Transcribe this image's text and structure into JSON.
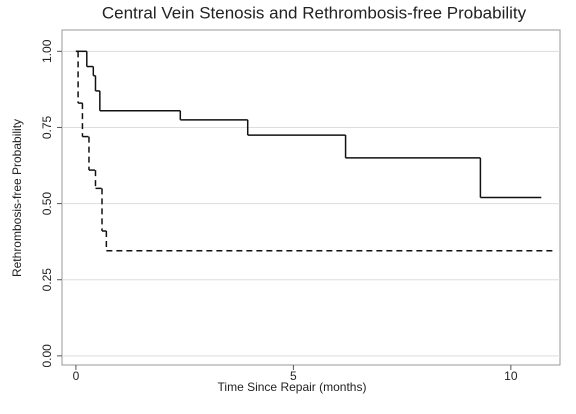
{
  "chart_data": {
    "type": "step",
    "title": "Central Vein Stenosis and Rethrombosis-free Probability",
    "xlabel": "Time Since Repair (months)",
    "ylabel": "Rethrombosis-free Probability",
    "xlim": [
      -0.32,
      11.13
    ],
    "ylim": [
      -0.03,
      1.07
    ],
    "xticks": [
      0,
      5,
      10
    ],
    "yticks": [
      {
        "value": 0,
        "label": "0.00"
      },
      {
        "value": 0.25,
        "label": "0.25"
      },
      {
        "value": 0.5,
        "label": "0.50"
      },
      {
        "value": 0.75,
        "label": "0.75"
      },
      {
        "value": 1,
        "label": "1.00"
      }
    ],
    "grid": true,
    "series": [
      {
        "color": "#111111",
        "dash": false,
        "x": [
          0,
          0.25,
          0.4,
          0.45,
          0.55,
          2.4,
          3.95,
          6.2,
          9.3,
          10.7
        ],
        "values": [
          1,
          0.95,
          0.92,
          0.87,
          0.805,
          0.775,
          0.725,
          0.65,
          0.52,
          0.52
        ]
      },
      {
        "color": "#111111",
        "dash": true,
        "x": [
          0,
          0.05,
          0.15,
          0.3,
          0.45,
          0.6,
          0.7,
          11.0
        ],
        "values": [
          1,
          0.83,
          0.72,
          0.61,
          0.55,
          0.41,
          0.345,
          0.345
        ]
      }
    ]
  }
}
